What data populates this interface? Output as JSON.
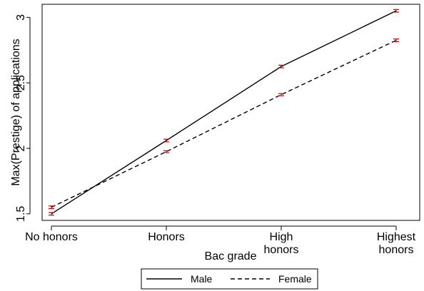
{
  "chart_data": {
    "type": "line",
    "categories": [
      "No honors",
      "Honors",
      "High honors",
      "Highest honors"
    ],
    "category_lines": [
      [
        "No honors"
      ],
      [
        "Honors"
      ],
      [
        "High",
        "honors"
      ],
      [
        "Highest",
        "honors"
      ]
    ],
    "xlabel": "Bac grade",
    "ylabel": "Max(Prestige) of applications",
    "ylim": [
      1.45,
      3.1
    ],
    "yticks": [
      1.5,
      2,
      2.5,
      3
    ],
    "ytick_labels": [
      "1.5",
      "2",
      "2.5",
      "3"
    ],
    "grid": false,
    "legend_position": "bottom",
    "error_bar_color": "#cc0000",
    "series": [
      {
        "name": "Male",
        "line_style": "solid",
        "color": "#000000",
        "values": [
          1.5,
          2.06,
          2.625,
          3.05
        ],
        "ci_low": [
          1.49,
          2.05,
          2.615,
          3.04
        ],
        "ci_high": [
          1.51,
          2.07,
          2.635,
          3.06
        ]
      },
      {
        "name": "Female",
        "line_style": "dashed",
        "color": "#000000",
        "values": [
          1.55,
          1.975,
          2.41,
          2.825
        ],
        "ci_low": [
          1.54,
          1.968,
          2.402,
          2.815
        ],
        "ci_high": [
          1.56,
          1.982,
          2.418,
          2.835
        ]
      }
    ]
  }
}
